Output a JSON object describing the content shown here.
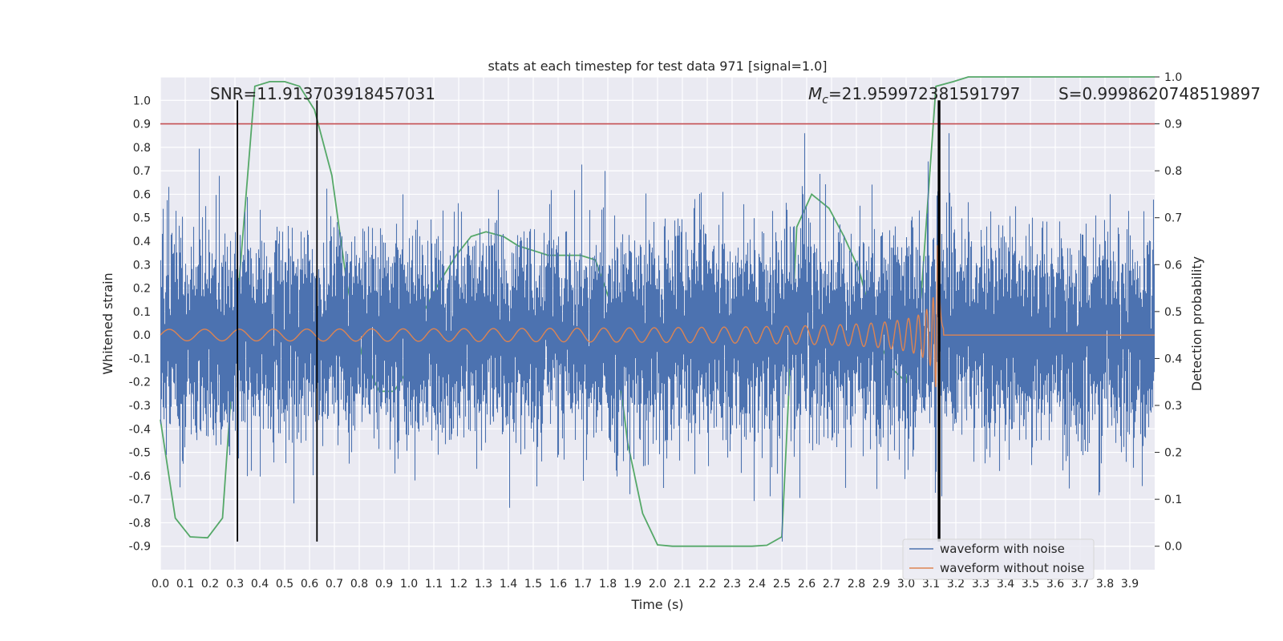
{
  "chart_data": {
    "type": "line",
    "title": "stats at each timestep for test data 971 [signal=1.0]",
    "xlabel": "Time (s)",
    "ylabel": "Whitened strain",
    "y2label": "Detection probability",
    "xlim": [
      0.0,
      4.0
    ],
    "ylim": [
      -1.0,
      1.1
    ],
    "y2lim": [
      -0.05,
      1.0
    ],
    "x_ticks": [
      "0.0",
      "0.1",
      "0.2",
      "0.3",
      "0.4",
      "0.5",
      "0.6",
      "0.7",
      "0.8",
      "0.9",
      "1.0",
      "1.1",
      "1.2",
      "1.3",
      "1.4",
      "1.5",
      "1.6",
      "1.7",
      "1.8",
      "1.9",
      "2.0",
      "2.1",
      "2.2",
      "2.3",
      "2.4",
      "2.5",
      "2.6",
      "2.7",
      "2.8",
      "2.9",
      "3.0",
      "3.1",
      "3.2",
      "3.3",
      "3.4",
      "3.5",
      "3.6",
      "3.7",
      "3.8",
      "3.9"
    ],
    "y_ticks": [
      "1.0",
      "0.9",
      "0.8",
      "0.7",
      "0.6",
      "0.5",
      "0.4",
      "0.3",
      "0.2",
      "0.1",
      "0.0",
      "-0.1",
      "-0.2",
      "-0.3",
      "-0.4",
      "-0.5",
      "-0.6",
      "-0.7",
      "-0.8",
      "-0.9"
    ],
    "y2_ticks": [
      "1.0",
      "0.9",
      "0.8",
      "0.7",
      "0.6",
      "0.5",
      "0.4",
      "0.3",
      "0.2",
      "0.1",
      "0.0"
    ],
    "grid": true,
    "legend_position": "lower-right",
    "annotations": {
      "snr": "SNR=11.913703918457031",
      "mc_symbol": "M",
      "mc_sub": "c",
      "mc_value": "=21.959972381591797",
      "s": "S=0.9998620748519897"
    },
    "series": [
      {
        "name": "waveform with noise",
        "color": "#4c72b0",
        "axis": "left",
        "kind": "noisy_strain",
        "std": 0.2,
        "duration": 4.0
      },
      {
        "name": "waveform without noise",
        "color": "#dd8452",
        "axis": "left",
        "kind": "chirp",
        "merger_time": 3.13,
        "start_amplitude": 0.015,
        "peak_amplitude": 0.38
      },
      {
        "color": "#55a868",
        "axis": "right",
        "x": [
          0.0,
          0.06,
          0.12,
          0.19,
          0.25,
          0.31,
          0.38,
          0.44,
          0.5,
          0.56,
          0.62,
          0.69,
          0.75,
          0.81,
          0.88,
          0.94,
          1.0,
          1.06,
          1.12,
          1.19,
          1.25,
          1.31,
          1.38,
          1.44,
          1.5,
          1.56,
          1.62,
          1.69,
          1.75,
          1.81,
          1.88,
          1.94,
          2.0,
          2.06,
          2.12,
          2.19,
          2.25,
          2.31,
          2.38,
          2.44,
          2.5,
          2.56,
          2.62,
          2.69,
          2.75,
          2.81,
          2.88,
          2.94,
          3.0,
          3.06,
          3.12,
          3.19,
          3.25,
          3.31,
          3.38,
          3.44,
          3.5,
          3.56,
          3.62,
          3.69,
          3.75,
          3.81,
          3.88,
          3.94,
          4.0
        ],
        "values": [
          0.27,
          0.06,
          0.02,
          0.018,
          0.06,
          0.52,
          0.98,
          0.99,
          0.99,
          0.98,
          0.93,
          0.79,
          0.56,
          0.41,
          0.33,
          0.33,
          0.38,
          0.5,
          0.56,
          0.62,
          0.66,
          0.67,
          0.66,
          0.64,
          0.63,
          0.62,
          0.62,
          0.62,
          0.61,
          0.52,
          0.22,
          0.07,
          0.003,
          0.0,
          0.0,
          0.0,
          0.0,
          0.0,
          0.0,
          0.002,
          0.02,
          0.68,
          0.75,
          0.72,
          0.66,
          0.59,
          0.45,
          0.38,
          0.35,
          0.53,
          0.98,
          0.99,
          1.0,
          1.0,
          1.0,
          1.0,
          1.0,
          1.0,
          1.0,
          1.0,
          1.0,
          1.0,
          1.0,
          1.0,
          1.0
        ]
      }
    ],
    "detection_threshold": {
      "axis": "right",
      "value": 0.9,
      "color": "#c44e52"
    },
    "vertical_markers": {
      "x": [
        0.31,
        0.63,
        3.13,
        3.135
      ],
      "color": "#000000"
    }
  }
}
